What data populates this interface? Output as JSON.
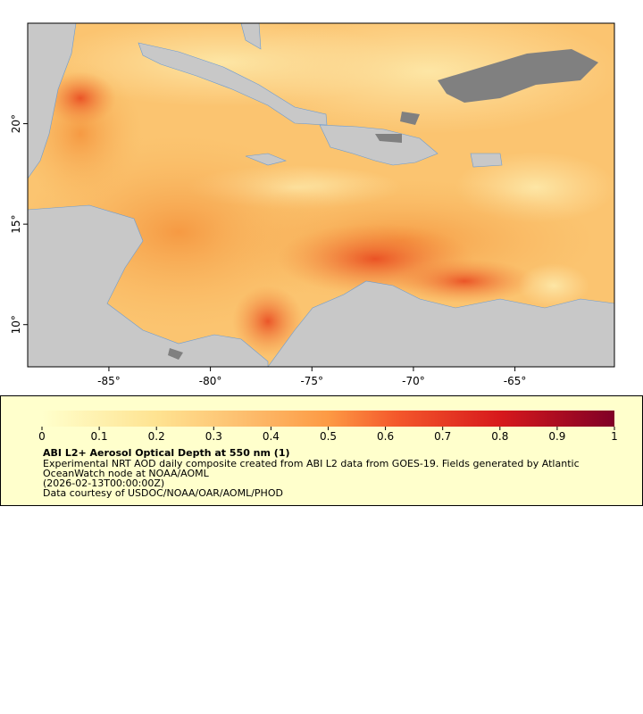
{
  "map": {
    "xlim": [
      -89,
      -60.1
    ],
    "ylim": [
      7.9,
      25
    ],
    "xticks": [
      {
        "value": -85,
        "label": "-85°"
      },
      {
        "value": -80,
        "label": "-80°"
      },
      {
        "value": -75,
        "label": "-75°"
      },
      {
        "value": -70,
        "label": "-70°"
      },
      {
        "value": -65,
        "label": "-65°"
      }
    ],
    "yticks": [
      {
        "value": 10,
        "label": "10°"
      },
      {
        "value": 15,
        "label": "15°"
      },
      {
        "value": 20,
        "label": "20°"
      }
    ]
  },
  "colorbar": {
    "lim": [
      0,
      1
    ],
    "ticks": [
      0,
      0.1,
      0.2,
      0.3,
      0.4,
      0.5,
      0.6,
      0.7,
      0.8,
      0.9,
      1
    ]
  },
  "legend": {
    "title": "ABI L2+ Aerosol Optical Depth at 550 nm (1)",
    "lines": [
      "Experimental NRT AOD daily composite created from ABI L2 data from GOES-19. Fields generated by Atlantic",
      "OceanWatch node at NOAA/AOML",
      "(2026-02-13T00:00:00Z)",
      "Data courtesy of USDOC/NOAA/OAR/AOML/PHOD"
    ]
  }
}
